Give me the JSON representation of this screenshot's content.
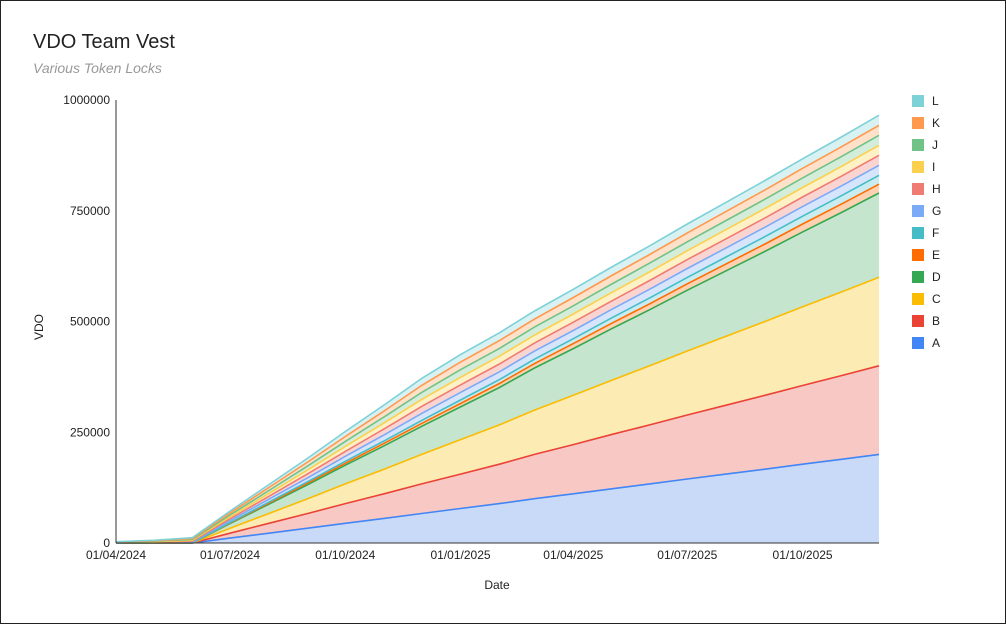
{
  "chart_data": {
    "type": "area",
    "stacked": true,
    "title": "VDO Team Vest",
    "subtitle": "Various Token Locks",
    "xlabel": "Date",
    "ylabel": "VDO",
    "ylim": [
      0,
      1000000
    ],
    "yticks": [
      "0",
      "250000",
      "500000",
      "750000",
      "1000000"
    ],
    "xticks": [
      "01/04/2024",
      "01/07/2024",
      "01/10/2024",
      "01/01/2025",
      "01/04/2025",
      "01/07/2025",
      "01/10/2025"
    ],
    "x_range": [
      "01/04/2024",
      "01/12/2025"
    ],
    "grid": false,
    "legend_position": "right",
    "x": [
      "01/04/2024",
      "01/05/2024",
      "01/06/2024",
      "01/07/2024",
      "01/08/2024",
      "01/09/2024",
      "01/10/2024",
      "01/11/2024",
      "01/12/2024",
      "01/01/2025",
      "01/02/2025",
      "01/03/2025",
      "01/04/2025",
      "01/05/2025",
      "01/06/2025",
      "01/07/2025",
      "01/08/2025",
      "01/09/2025",
      "01/10/2025",
      "01/11/2025",
      "01/12/2025"
    ],
    "series": [
      {
        "name": "A",
        "color": "#4285F4",
        "fill": "#C9DAF8",
        "values": [
          0,
          0,
          0,
          11111,
          22222,
          33333,
          44444,
          55556,
          66667,
          77778,
          88889,
          100000,
          111111,
          122222,
          133333,
          144444,
          155556,
          166667,
          177778,
          188889,
          200000
        ]
      },
      {
        "name": "B",
        "color": "#EA4335",
        "fill": "#F8C8C4",
        "values": [
          0,
          0,
          0,
          11111,
          22222,
          33333,
          44444,
          55556,
          66667,
          77778,
          88889,
          100000,
          111111,
          122222,
          133333,
          144444,
          155556,
          166667,
          177778,
          188889,
          200000
        ]
      },
      {
        "name": "C",
        "color": "#FBBC04",
        "fill": "#FDEBB4",
        "values": [
          0,
          0,
          0,
          11111,
          22222,
          33333,
          44444,
          55556,
          66667,
          77778,
          88889,
          100000,
          111111,
          122222,
          133333,
          144444,
          155556,
          166667,
          177778,
          188889,
          200000
        ]
      },
      {
        "name": "D",
        "color": "#34A853",
        "fill": "#C5E5CE",
        "values": [
          0,
          0,
          0,
          10556,
          21111,
          31667,
          42222,
          52778,
          63333,
          73889,
          84444,
          95000,
          105556,
          116111,
          126667,
          137222,
          147778,
          158333,
          168889,
          179444,
          190000
        ]
      },
      {
        "name": "E",
        "color": "#FF6D01",
        "fill": "#FFD1B0",
        "values": [
          0,
          0,
          0,
          1111,
          2222,
          3333,
          4444,
          5556,
          6667,
          7778,
          8889,
          10000,
          11111,
          12222,
          13333,
          14444,
          15556,
          16667,
          17778,
          18889,
          20000
        ]
      },
      {
        "name": "F",
        "color": "#46BDC6",
        "fill": "#C8ECEF",
        "values": [
          0,
          0,
          0,
          1111,
          2222,
          3333,
          4444,
          5556,
          6667,
          7778,
          8889,
          10000,
          11111,
          12222,
          13333,
          14444,
          15556,
          16667,
          17778,
          18889,
          20000
        ]
      },
      {
        "name": "G",
        "color": "#7BAAF7",
        "fill": "#D7E5FC",
        "values": [
          500,
          1000,
          2000,
          4300,
          6600,
          8900,
          11200,
          13500,
          15800,
          17100,
          17600,
          18100,
          18600,
          19100,
          19600,
          20100,
          20600,
          21100,
          21600,
          22100,
          22600
        ]
      },
      {
        "name": "H",
        "color": "#F07B72",
        "fill": "#FAD4D1",
        "values": [
          500,
          1000,
          2000,
          4300,
          6600,
          8900,
          11200,
          13500,
          15800,
          17100,
          17600,
          18100,
          18600,
          19100,
          19600,
          20100,
          20600,
          21100,
          21600,
          22100,
          22600
        ]
      },
      {
        "name": "I",
        "color": "#FCD04F",
        "fill": "#FEF1C6",
        "values": [
          500,
          1000,
          2000,
          4300,
          6600,
          8900,
          11200,
          13500,
          15800,
          17100,
          17600,
          18100,
          18600,
          19100,
          19600,
          20100,
          20600,
          21100,
          21600,
          22100,
          22600
        ]
      },
      {
        "name": "J",
        "color": "#71C287",
        "fill": "#D4EDDB",
        "values": [
          500,
          1000,
          2000,
          4300,
          6600,
          8900,
          11200,
          13500,
          15800,
          17100,
          17600,
          18100,
          18600,
          19100,
          19600,
          20100,
          20600,
          21100,
          21600,
          22100,
          22600
        ]
      },
      {
        "name": "K",
        "color": "#FF994D",
        "fill": "#FFE0C9",
        "values": [
          500,
          1000,
          2000,
          4300,
          6600,
          8900,
          11200,
          13500,
          15800,
          17100,
          17600,
          18100,
          18600,
          19100,
          19600,
          20100,
          20600,
          21100,
          21600,
          22100,
          22600
        ]
      },
      {
        "name": "L",
        "color": "#7ED1D7",
        "fill": "#D8F1F3",
        "values": [
          500,
          1000,
          2000,
          4300,
          6600,
          8900,
          11200,
          13500,
          15800,
          17100,
          17600,
          18100,
          18600,
          19100,
          19600,
          20100,
          20600,
          21100,
          21600,
          22100,
          22600
        ]
      }
    ]
  }
}
